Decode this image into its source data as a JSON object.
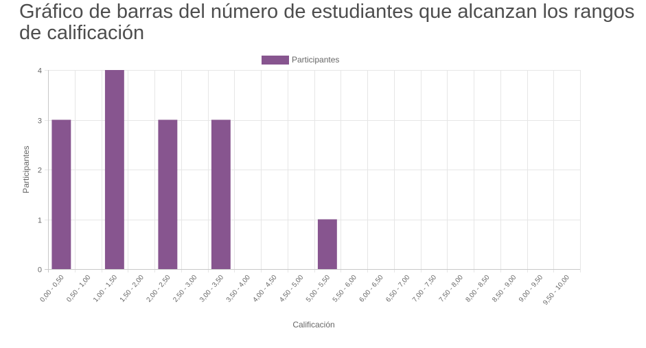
{
  "page": {
    "title": "Gráfico de barras del número de estudiantes que alcanzan los rangos de calificación"
  },
  "chart_data": {
    "type": "bar",
    "categories": [
      "0,00 - 0,50",
      "0,50 - 1,00",
      "1,00 - 1,50",
      "1,50 - 2,00",
      "2,00 - 2,50",
      "2,50 - 3,00",
      "3,00 - 3,50",
      "3,50 - 4,00",
      "4,00 - 4,50",
      "4,50 - 5,00",
      "5,00 - 5,50",
      "5,50 - 6,00",
      "6,00 - 6,50",
      "6,50 - 7,00",
      "7,00 - 7,50",
      "7,50 - 8,00",
      "8,00 - 8,50",
      "8,50 - 9,00",
      "9,00 - 9,50",
      "9,50 - 10,00"
    ],
    "series": [
      {
        "name": "Participantes",
        "values": [
          3,
          0,
          4,
          0,
          3,
          0,
          3,
          0,
          0,
          0,
          1,
          0,
          0,
          0,
          0,
          0,
          0,
          0,
          0,
          0
        ]
      }
    ],
    "xlabel": "Calificación",
    "ylabel": "Participantes",
    "ylim": [
      0,
      4
    ],
    "yticks": [
      "0",
      "1",
      "2",
      "3",
      "4"
    ],
    "grid": true,
    "legend_position": "top-center",
    "bar_color": "#87558f"
  }
}
